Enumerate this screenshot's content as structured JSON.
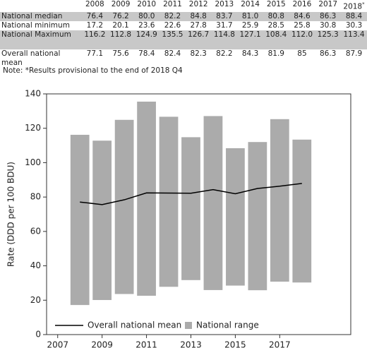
{
  "table": {
    "columns": [
      "2008",
      "2009",
      "2010",
      "2011",
      "2012",
      "2013",
      "2014",
      "2015",
      "2016",
      "2017",
      "2018"
    ],
    "footnote_mark": "*",
    "rows": [
      {
        "label": "National median",
        "cells": [
          "76.4",
          "76.2",
          "80.0",
          "82.2",
          "84.8",
          "83.7",
          "81.0",
          "80.8",
          "84.6",
          "86.3",
          "88.4"
        ]
      },
      {
        "label": "National minimum",
        "cells": [
          "17.2",
          "20.1",
          "23.6",
          "22.6",
          "27.8",
          "31.7",
          "25.9",
          "28.5",
          "25.8",
          "30.8",
          "30.3"
        ]
      },
      {
        "label": "National Maximum",
        "cells": [
          "116.2",
          "112.8",
          "124.9",
          "135.5",
          "126.7",
          "114.8",
          "127.1",
          "108.4",
          "112.0",
          "125.3",
          "113.4"
        ]
      },
      {
        "label": "Overall national mean",
        "cells": [
          "77.1",
          "75.6",
          "78.4",
          "82.4",
          "82.3",
          "82.2",
          "84.3",
          "81.9",
          "85",
          "86.3",
          "87.9"
        ]
      }
    ],
    "note": "Note: *Results provisional to the end of 2018 Q4"
  },
  "chart_data": {
    "type": "range-bar-line",
    "y_label": "Rate (DDD per 100 BDU)",
    "x": [
      2008,
      2009,
      2010,
      2011,
      2012,
      2013,
      2014,
      2015,
      2016,
      2017,
      2018
    ],
    "series": [
      {
        "name": "Overall national mean",
        "color": "#000000",
        "values": [
          77.1,
          75.6,
          78.4,
          82.4,
          82.3,
          82.2,
          84.3,
          81.9,
          85,
          86.3,
          87.9
        ]
      },
      {
        "name": "National range",
        "color": "#ababab",
        "min": [
          17.2,
          20.1,
          23.6,
          22.6,
          27.8,
          31.7,
          25.9,
          28.5,
          25.8,
          30.8,
          30.3
        ],
        "max": [
          116.2,
          112.8,
          124.9,
          135.5,
          126.7,
          114.8,
          127.1,
          108.4,
          112.0,
          125.3,
          113.4
        ]
      }
    ],
    "xlim": [
      2006.5,
      2020.2
    ],
    "xticks": [
      2007,
      2009,
      2011,
      2013,
      2015,
      2017
    ],
    "ylim": [
      0,
      140
    ],
    "yticks": [
      0,
      20,
      40,
      60,
      80,
      100,
      120,
      140
    ],
    "legend": "bottom-left"
  }
}
